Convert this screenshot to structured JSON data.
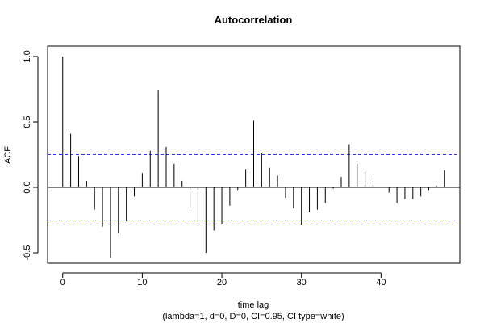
{
  "chart_data": {
    "type": "bar",
    "style": "acf-lag-spikes",
    "title": "Autocorrelation",
    "xlabel": "time lag",
    "subtitle": "(lambda=1, d=0, D=0, CI=0.95, CI type=white)",
    "ylabel": "ACF",
    "x": [
      0,
      1,
      2,
      3,
      4,
      5,
      6,
      7,
      8,
      9,
      10,
      11,
      12,
      13,
      14,
      15,
      16,
      17,
      18,
      19,
      20,
      21,
      22,
      23,
      24,
      25,
      26,
      27,
      28,
      29,
      30,
      31,
      32,
      33,
      34,
      35,
      36,
      37,
      38,
      39,
      40,
      41,
      42,
      43,
      44,
      45,
      46,
      47,
      48
    ],
    "values": [
      1.0,
      0.41,
      0.24,
      0.05,
      -0.17,
      -0.3,
      -0.54,
      -0.35,
      -0.26,
      -0.07,
      0.11,
      0.28,
      0.74,
      0.31,
      0.18,
      0.05,
      -0.16,
      -0.28,
      -0.5,
      -0.33,
      -0.28,
      -0.14,
      -0.02,
      0.14,
      0.51,
      0.26,
      0.15,
      0.09,
      -0.08,
      -0.16,
      -0.29,
      -0.19,
      -0.17,
      -0.12,
      -0.01,
      0.08,
      0.33,
      0.18,
      0.12,
      0.08,
      0.0,
      -0.04,
      -0.12,
      -0.09,
      -0.09,
      -0.07,
      -0.02,
      0.01,
      0.13
    ],
    "xlim": [
      -1.9,
      49.9
    ],
    "ylim": [
      -0.58,
      1.08
    ],
    "xticks": [
      "0",
      "10",
      "20",
      "30",
      "40"
    ],
    "xtick_values": [
      0,
      10,
      20,
      30,
      40
    ],
    "yticks": [
      "-0.5",
      "0.0",
      "0.5",
      "1.0"
    ],
    "ytick_values": [
      -0.5,
      0.0,
      0.5,
      1.0
    ],
    "confidence_bounds": [
      0.25,
      -0.25
    ],
    "colors": {
      "spike": "#000000",
      "ci": "#3333ff",
      "zero": "#000000"
    },
    "grid": false
  }
}
